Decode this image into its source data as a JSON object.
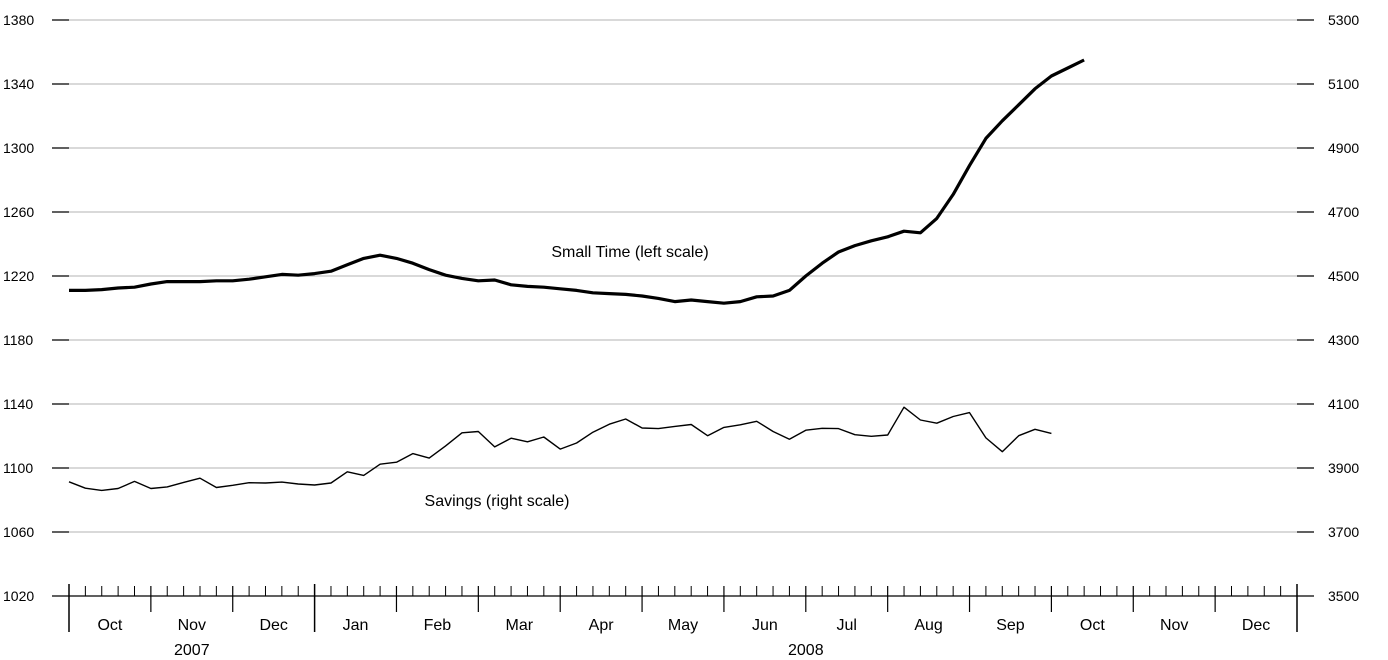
{
  "chart_data": {
    "type": "line",
    "title": "",
    "xlabel": "",
    "ylabel": "",
    "left_axis": {
      "ylim": [
        1020,
        1380
      ],
      "ticks": [
        1020,
        1060,
        1100,
        1140,
        1180,
        1220,
        1260,
        1300,
        1340,
        1380
      ]
    },
    "right_axis": {
      "ylim": [
        3500,
        5300
      ],
      "ticks": [
        3500,
        3700,
        3900,
        4100,
        4300,
        4500,
        4700,
        4900,
        5100,
        5300
      ]
    },
    "grid": true,
    "legend": "none",
    "x_axis": {
      "month_labels": [
        "Oct",
        "Nov",
        "Dec",
        "Jan",
        "Feb",
        "Mar",
        "Apr",
        "May",
        "Jun",
        "Jul",
        "Aug",
        "Sep",
        "Oct",
        "Nov",
        "Dec"
      ],
      "year_labels": [
        "2007",
        "2008"
      ]
    },
    "series": [
      {
        "name": "Small Time",
        "axis": "left",
        "annotation": "Small Time (left scale)",
        "values": [
          1211,
          1211,
          1211.5,
          1212.5,
          1213,
          1215,
          1216.5,
          1216.5,
          1216.5,
          1217,
          1217,
          1218,
          1219.5,
          1221,
          1220.5,
          1221.5,
          1223,
          1227,
          1231,
          1233,
          1231,
          1228,
          1224,
          1220.5,
          1218.5,
          1217,
          1217.5,
          1214.5,
          1213.5,
          1213,
          1212,
          1211,
          1209.5,
          1209,
          1208.5,
          1207.5,
          1206,
          1204,
          1205,
          1204,
          1203,
          1204,
          1207,
          1207.5,
          1211,
          1220,
          1228,
          1235,
          1239,
          1242,
          1244.5,
          1248,
          1247,
          1256,
          1271,
          1289,
          1306,
          1317,
          1327,
          1337,
          1345,
          1350,
          1355
        ]
      },
      {
        "name": "Savings",
        "axis": "right",
        "annotation": "Savings (right scale)",
        "values": [
          3857,
          3837,
          3830,
          3836,
          3858,
          3836,
          3841,
          3855,
          3868,
          3839,
          3846,
          3854,
          3853,
          3856,
          3850,
          3847,
          3853,
          3888,
          3877,
          3912,
          3918,
          3945,
          3931,
          3969,
          4010,
          4014,
          3966,
          3993,
          3982,
          3997,
          3959,
          3978,
          4012,
          4037,
          4053,
          4025,
          4023,
          4030,
          4036,
          4001,
          4027,
          4035,
          4046,
          4014,
          3990,
          4018,
          4024,
          4023,
          4004,
          3999,
          4003,
          4090,
          4050,
          4040,
          4061,
          4073,
          3994,
          3951,
          4001,
          4021,
          4008
        ]
      }
    ]
  }
}
